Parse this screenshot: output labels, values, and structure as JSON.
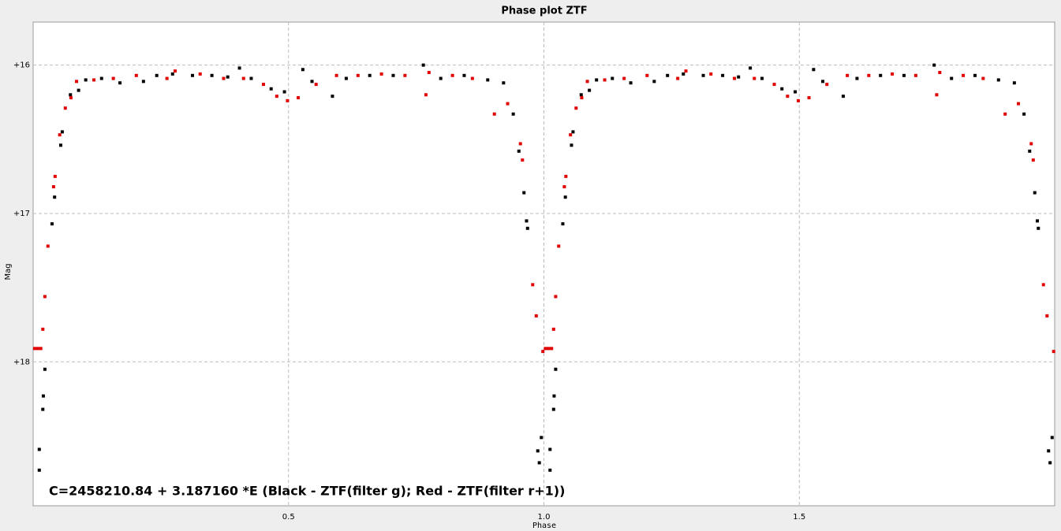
{
  "chart_data": {
    "type": "scatter",
    "title": "Phase plot ZTF",
    "x_label": "Phase",
    "y_label": "Mag",
    "annotation": "C=2458210.84 + 3.187160 *E (Black - ZTF(filter g); Red - ZTF(filter r+1))",
    "annotation_color": "#4a1fe0",
    "xlim": [
      0,
      2
    ],
    "xticks": [
      0.5,
      {
        "value": 1,
        "label": "1.0"
      },
      1.5
    ],
    "ylim": [
      18.97,
      15.71
    ],
    "y_inverted": true,
    "yticks": [
      {
        "value": 16,
        "label": "+16"
      },
      {
        "value": 17,
        "label": "+17"
      },
      {
        "value": 18,
        "label": "+18"
      }
    ],
    "grid": true,
    "series": [
      {
        "name": "Black - ZTF(filter g)",
        "color": "#000000",
        "x": [
          0.012,
          0.012,
          0.019,
          0.02,
          0.023,
          0.037,
          0.042,
          0.054,
          0.057,
          0.073,
          0.089,
          0.103,
          0.134,
          0.17,
          0.216,
          0.242,
          0.273,
          0.312,
          0.35,
          0.381,
          0.404,
          0.427,
          0.466,
          0.492,
          0.528,
          0.546,
          0.586,
          0.613,
          0.659,
          0.705,
          0.764,
          0.798,
          0.844,
          0.89,
          0.921,
          0.94,
          0.951,
          0.961,
          0.966,
          0.968,
          0.988,
          0.991,
          0.995,
          1.012,
          1.012,
          1.019,
          1.02,
          1.023,
          1.037,
          1.042,
          1.054,
          1.057,
          1.073,
          1.089,
          1.103,
          1.134,
          1.17,
          1.216,
          1.242,
          1.273,
          1.312,
          1.35,
          1.381,
          1.404,
          1.427,
          1.466,
          1.492,
          1.528,
          1.546,
          1.586,
          1.613,
          1.659,
          1.705,
          1.764,
          1.798,
          1.844,
          1.89,
          1.921,
          1.94,
          1.951,
          1.961,
          1.966,
          1.968,
          1.988,
          1.991,
          1.995
        ],
        "values": [
          18.73,
          18.59,
          18.32,
          18.23,
          18.05,
          17.07,
          16.89,
          16.54,
          16.45,
          16.2,
          16.17,
          16.1,
          16.09,
          16.12,
          16.11,
          16.07,
          16.06,
          16.07,
          16.07,
          16.08,
          16.02,
          16.09,
          16.16,
          16.18,
          16.03,
          16.11,
          16.21,
          16.09,
          16.07,
          16.07,
          16.0,
          16.09,
          16.07,
          16.1,
          16.12,
          16.33,
          16.58,
          16.86,
          17.05,
          17.1,
          18.6,
          18.68,
          18.51,
          18.73,
          18.59,
          18.32,
          18.23,
          18.05,
          17.07,
          16.89,
          16.54,
          16.45,
          16.2,
          16.17,
          16.1,
          16.09,
          16.12,
          16.11,
          16.07,
          16.06,
          16.07,
          16.07,
          16.08,
          16.02,
          16.09,
          16.16,
          16.18,
          16.03,
          16.11,
          16.21,
          16.09,
          16.07,
          16.07,
          16.0,
          16.09,
          16.07,
          16.1,
          16.12,
          16.33,
          16.58,
          16.86,
          17.05,
          17.1,
          18.6,
          18.68,
          18.51
        ]
      },
      {
        "name": "Red - ZTF(filter r+1)",
        "color": "#e00000",
        "x": [
          0.003,
          0.009,
          0.015,
          0.019,
          0.023,
          0.029,
          0.04,
          0.043,
          0.052,
          0.063,
          0.074,
          0.085,
          0.119,
          0.157,
          0.202,
          0.262,
          0.278,
          0.327,
          0.373,
          0.412,
          0.451,
          0.477,
          0.498,
          0.519,
          0.554,
          0.594,
          0.636,
          0.682,
          0.728,
          0.769,
          0.775,
          0.821,
          0.86,
          0.903,
          0.929,
          0.954,
          0.958,
          0.978,
          0.985,
          0.998,
          1.003,
          1.009,
          1.015,
          1.019,
          1.023,
          1.029,
          1.04,
          1.043,
          1.052,
          1.063,
          1.074,
          1.085,
          1.119,
          1.157,
          1.202,
          1.262,
          1.278,
          1.327,
          1.373,
          1.412,
          1.451,
          1.477,
          1.498,
          1.519,
          1.554,
          1.594,
          1.636,
          1.682,
          1.728,
          1.769,
          1.775,
          1.821,
          1.86,
          1.903,
          1.929,
          1.954,
          1.958,
          1.978,
          1.985,
          1.998
        ],
        "values": [
          17.91,
          17.91,
          17.91,
          17.78,
          17.56,
          17.22,
          16.82,
          16.75,
          16.47,
          16.29,
          16.22,
          16.11,
          16.1,
          16.09,
          16.07,
          16.09,
          16.04,
          16.06,
          16.09,
          16.09,
          16.13,
          16.21,
          16.24,
          16.22,
          16.13,
          16.07,
          16.07,
          16.06,
          16.07,
          16.2,
          16.05,
          16.07,
          16.09,
          16.33,
          16.26,
          16.53,
          16.64,
          17.48,
          17.69,
          17.93,
          17.91,
          17.91,
          17.91,
          17.78,
          17.56,
          17.22,
          16.82,
          16.75,
          16.47,
          16.29,
          16.22,
          16.11,
          16.1,
          16.09,
          16.07,
          16.09,
          16.04,
          16.06,
          16.09,
          16.09,
          16.13,
          16.21,
          16.24,
          16.22,
          16.13,
          16.07,
          16.07,
          16.06,
          16.07,
          16.2,
          16.05,
          16.07,
          16.09,
          16.33,
          16.26,
          16.53,
          16.64,
          17.48,
          17.69,
          17.93
        ]
      }
    ]
  }
}
